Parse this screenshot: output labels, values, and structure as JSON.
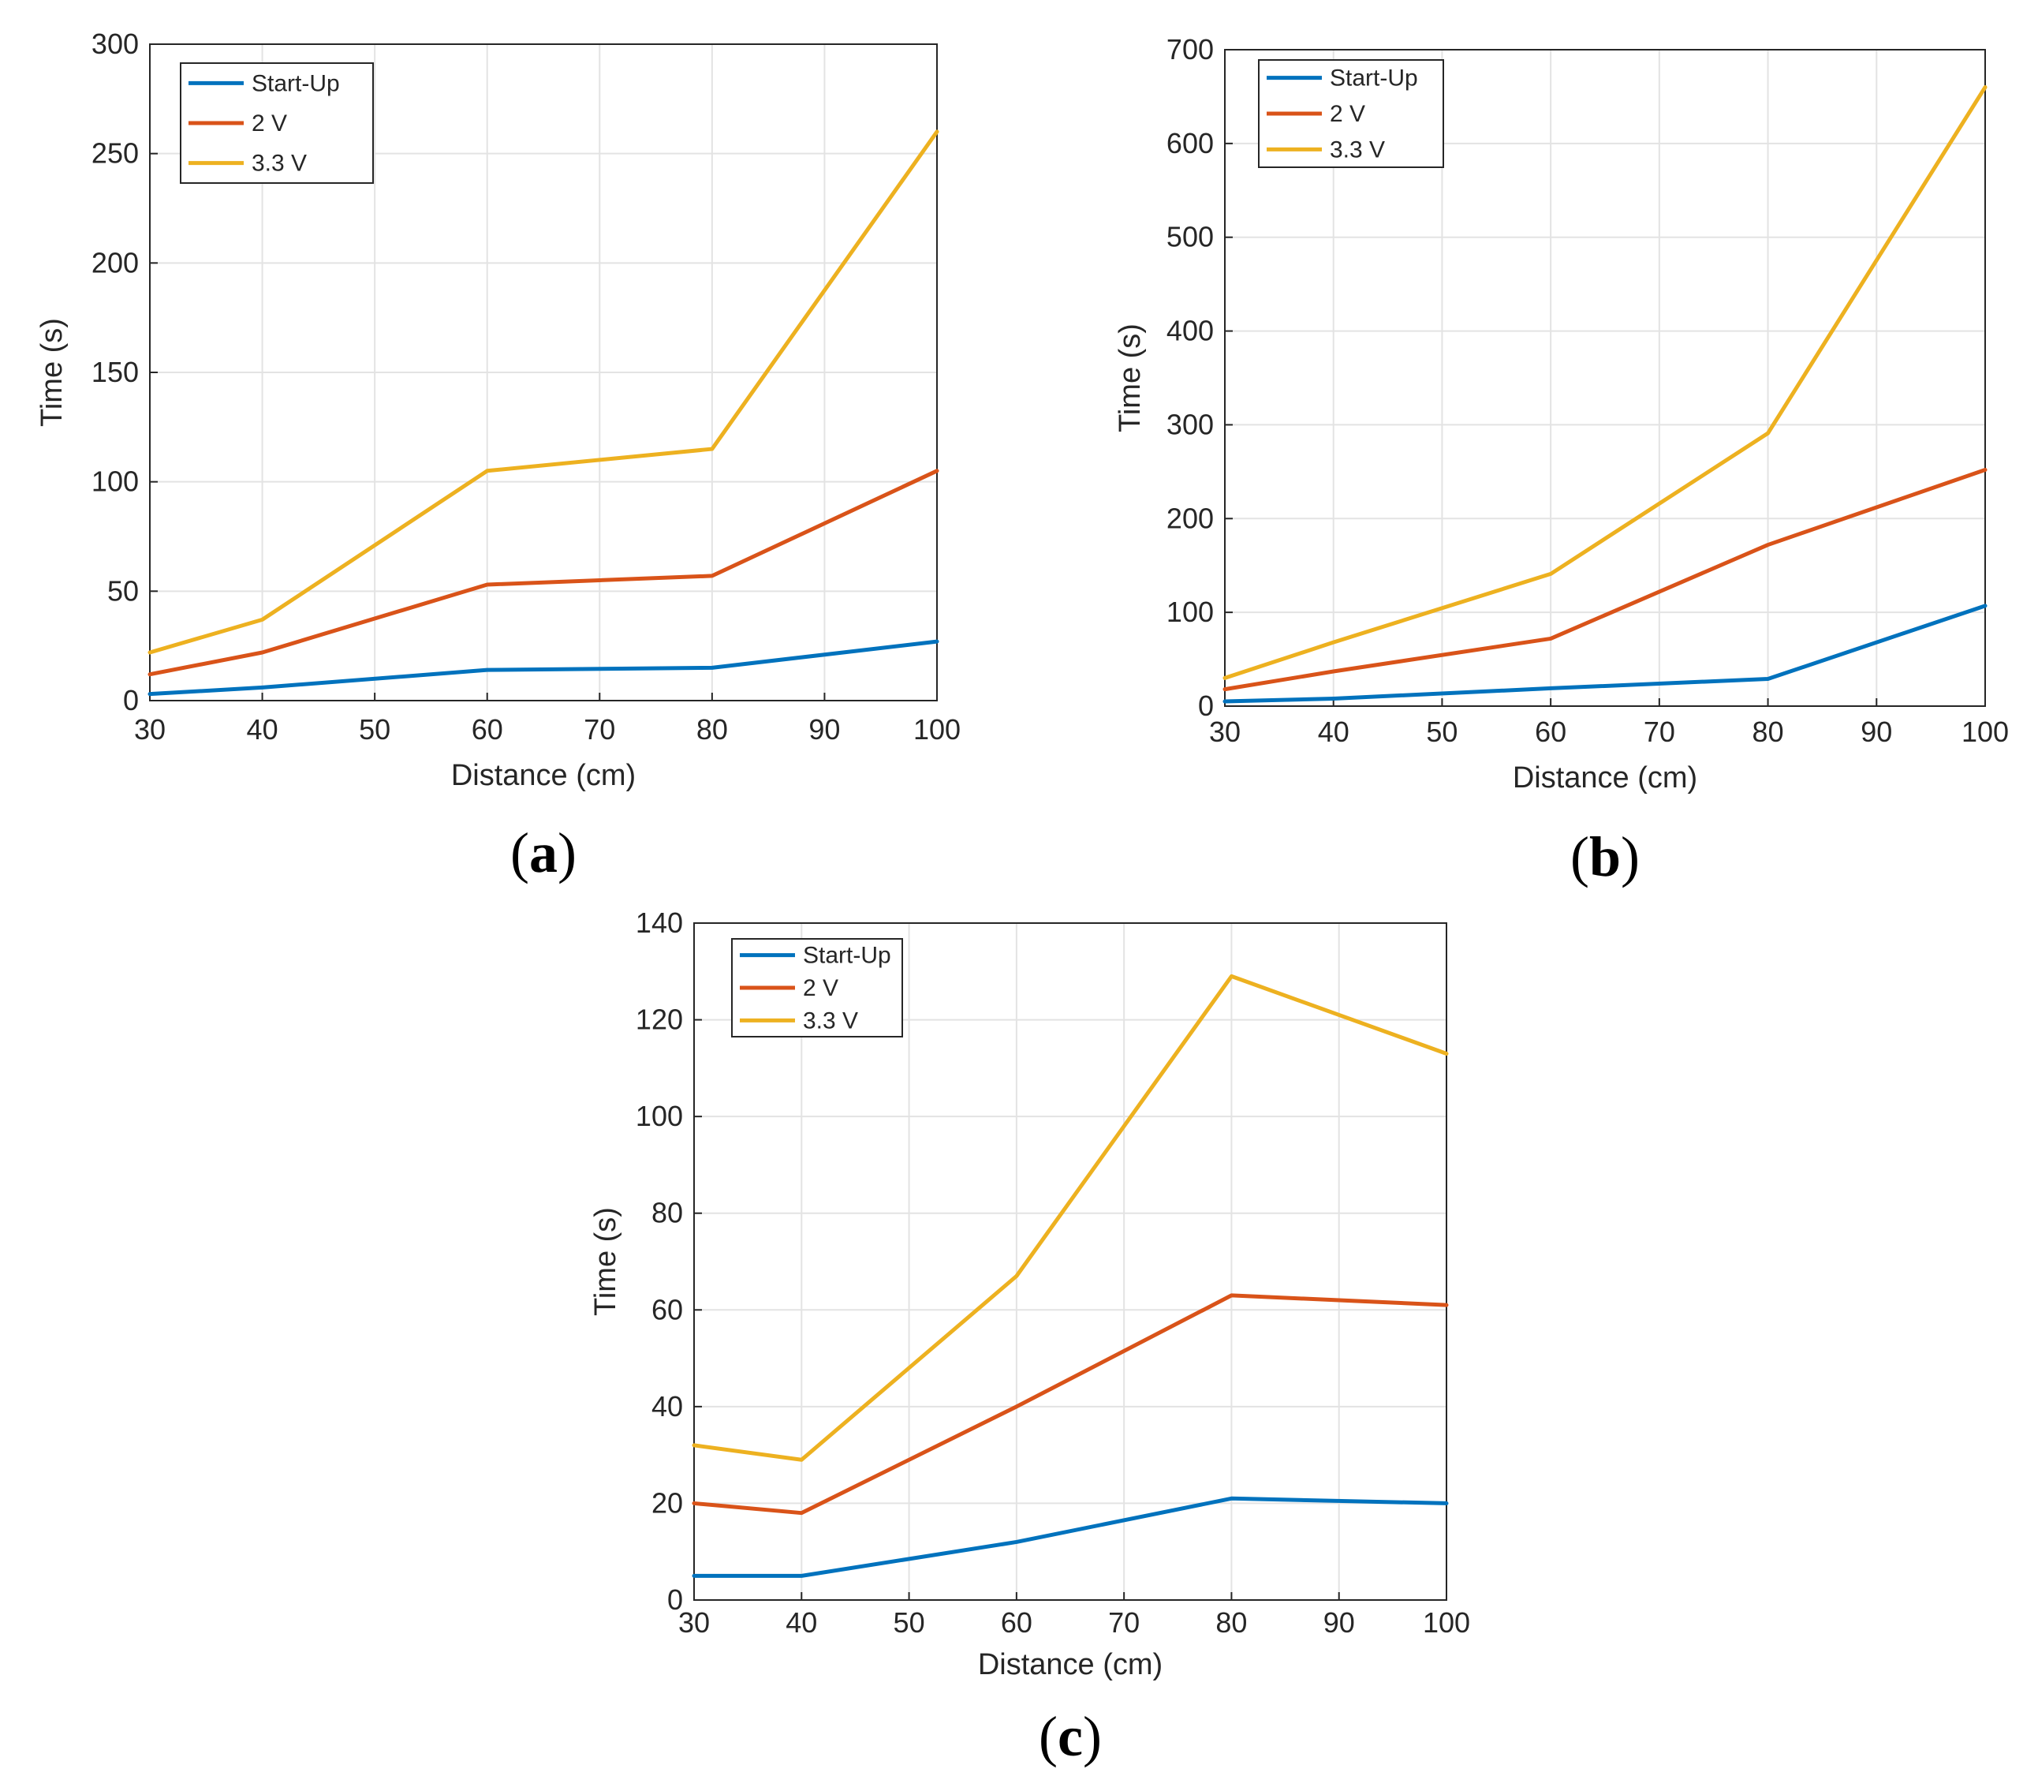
{
  "chart_data": [
    {
      "type": "line",
      "panel_label": "a",
      "xlabel": "Distance (cm)",
      "ylabel": "Time (s)",
      "xlim": [
        30,
        100
      ],
      "ylim": [
        0,
        300
      ],
      "xticks": [
        30,
        40,
        50,
        60,
        70,
        80,
        90,
        100
      ],
      "yticks": [
        0,
        50,
        100,
        150,
        200,
        250,
        300
      ],
      "grid": true,
      "legend_position": "top-left",
      "x": [
        30,
        40,
        60,
        80,
        100
      ],
      "series": [
        {
          "name": "Start-Up",
          "color": "#0072BD",
          "values": [
            3,
            6,
            14,
            15,
            27
          ]
        },
        {
          "name": "2 V",
          "color": "#D95319",
          "values": [
            12,
            22,
            53,
            57,
            105
          ]
        },
        {
          "name": "3.3 V",
          "color": "#EDB120",
          "values": [
            22,
            37,
            105,
            115,
            260
          ]
        }
      ]
    },
    {
      "type": "line",
      "panel_label": "b",
      "xlabel": "Distance (cm)",
      "ylabel": "Time (s)",
      "xlim": [
        30,
        100
      ],
      "ylim": [
        0,
        700
      ],
      "xticks": [
        30,
        40,
        50,
        60,
        70,
        80,
        90,
        100
      ],
      "yticks": [
        0,
        100,
        200,
        300,
        400,
        500,
        600,
        700
      ],
      "grid": true,
      "legend_position": "top-left",
      "x": [
        30,
        40,
        60,
        80,
        100
      ],
      "series": [
        {
          "name": "Start-Up",
          "color": "#0072BD",
          "values": [
            5,
            8,
            19,
            29,
            107
          ]
        },
        {
          "name": "2 V",
          "color": "#D95319",
          "values": [
            18,
            37,
            72,
            172,
            252
          ]
        },
        {
          "name": "3.3 V",
          "color": "#EDB120",
          "values": [
            30,
            68,
            141,
            291,
            660
          ]
        }
      ]
    },
    {
      "type": "line",
      "panel_label": "c",
      "xlabel": "Distance (cm)",
      "ylabel": "Time (s)",
      "xlim": [
        30,
        100
      ],
      "ylim": [
        0,
        140
      ],
      "xticks": [
        30,
        40,
        50,
        60,
        70,
        80,
        90,
        100
      ],
      "yticks": [
        0,
        20,
        40,
        60,
        80,
        100,
        120,
        140
      ],
      "grid": true,
      "legend_position": "top-left",
      "x": [
        30,
        40,
        60,
        80,
        100
      ],
      "series": [
        {
          "name": "Start-Up",
          "color": "#0072BD",
          "values": [
            5,
            5,
            12,
            21,
            20
          ]
        },
        {
          "name": "2 V",
          "color": "#D95319",
          "values": [
            20,
            18,
            40,
            63,
            61
          ]
        },
        {
          "name": "3.3 V",
          "color": "#EDB120",
          "values": [
            32,
            29,
            67,
            129,
            113
          ]
        }
      ]
    }
  ]
}
